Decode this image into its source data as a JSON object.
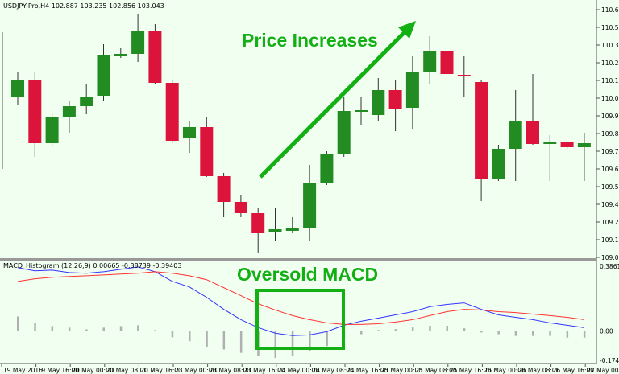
{
  "header": {
    "symbol_info": "USDJPY-Pro,H4  102.887 103.235 102.856 103.043"
  },
  "indicator": {
    "label": "MACD_Histogram (12,26,9) 0.00665 -0.38739 -0.39403"
  },
  "annotations": {
    "price_text": "Price Increases",
    "macd_text": "Oversold MACD",
    "color": "#12b012"
  },
  "colors": {
    "bull": "#228b22",
    "bear": "#dc143c",
    "macd": "#3333ff",
    "signal": "#ff3333",
    "hist": "#b0b0b0",
    "background": "#f0fff0"
  },
  "chart_data": [
    {
      "type": "candlestick",
      "ylim": [
        109.07,
        110.61
      ],
      "y_ticks": [
        "110.610",
        "110.500",
        "110.390",
        "110.280",
        "110.170",
        "110.060",
        "109.950",
        "109.840",
        "109.730",
        "109.620",
        "109.510",
        "109.400",
        "109.290",
        "109.180",
        "109.070"
      ],
      "ohlc": [
        [
          110.065,
          110.22,
          110.02,
          110.175
        ],
        [
          110.175,
          110.22,
          109.695,
          109.78
        ],
        [
          109.78,
          109.97,
          109.76,
          109.945
        ],
        [
          109.945,
          110.045,
          109.845,
          110.01
        ],
        [
          110.01,
          110.15,
          109.96,
          110.07
        ],
        [
          110.075,
          110.395,
          110.045,
          110.325
        ],
        [
          110.32,
          110.37,
          110.31,
          110.335
        ],
        [
          110.335,
          110.585,
          110.285,
          110.48
        ],
        [
          110.48,
          110.52,
          110.145,
          110.155
        ],
        [
          110.155,
          110.17,
          109.78,
          109.795
        ],
        [
          109.81,
          109.92,
          109.72,
          109.88
        ],
        [
          109.88,
          109.945,
          109.57,
          109.575
        ],
        [
          109.575,
          109.595,
          109.32,
          109.415
        ],
        [
          109.415,
          109.455,
          109.32,
          109.345
        ],
        [
          109.345,
          109.38,
          109.095,
          109.22
        ],
        [
          109.23,
          109.38,
          109.17,
          109.245
        ],
        [
          109.235,
          109.32,
          109.22,
          109.255
        ],
        [
          109.255,
          109.645,
          109.17,
          109.535
        ],
        [
          109.535,
          109.73,
          109.52,
          109.715
        ],
        [
          109.715,
          110.07,
          109.695,
          109.98
        ],
        [
          109.98,
          110.07,
          109.895,
          109.985
        ],
        [
          109.955,
          110.185,
          109.92,
          110.11
        ],
        [
          110.11,
          110.17,
          109.855,
          109.995
        ],
        [
          110.0,
          110.32,
          109.87,
          110.225
        ],
        [
          110.225,
          110.445,
          110.145,
          110.355
        ],
        [
          110.355,
          110.455,
          110.07,
          110.21
        ],
        [
          110.205,
          110.32,
          110.07,
          110.195
        ],
        [
          110.16,
          110.17,
          109.42,
          109.555
        ],
        [
          109.555,
          109.77,
          109.545,
          109.745
        ],
        [
          109.745,
          110.11,
          109.545,
          109.915
        ],
        [
          109.915,
          110.21,
          109.77,
          109.775
        ],
        [
          109.775,
          109.83,
          109.545,
          109.79
        ],
        [
          109.79,
          109.79,
          109.745,
          109.755
        ],
        [
          109.755,
          109.845,
          109.545,
          109.78
        ]
      ]
    },
    {
      "type": "line",
      "ylim": [
        -0.17411,
        0.38615
      ],
      "y_ticks": [
        "0.38615",
        "0.00",
        "-0.17411"
      ],
      "x_ticks": [
        "19 May 2016",
        "19 May 16:00",
        "20 May 00:00",
        "20 May 08:00",
        "20 May 16:00",
        "23 May 00:00",
        "23 May 08:00",
        "23 May 16:00",
        "24 May 00:00",
        "24 May 08:00",
        "24 May 16:00",
        "25 May 00:00",
        "25 May 08:00",
        "25 May 16:00",
        "26 May 00:00",
        "26 May 08:00",
        "26 May 16:00",
        "27 May 00:00"
      ],
      "histogram": [
        0.085,
        0.047,
        0.028,
        0.019,
        0.009,
        0.019,
        0.028,
        0.033,
        0.005,
        -0.038,
        -0.061,
        -0.094,
        -0.11,
        -0.13,
        -0.15,
        -0.16,
        -0.15,
        -0.12,
        -0.09,
        -0.04,
        -0.02,
        0.005,
        0.01,
        0.02,
        0.03,
        0.03,
        0.015,
        -0.01,
        -0.02,
        -0.03,
        -0.03,
        -0.03,
        -0.04,
        -0.04
      ],
      "series": [
        {
          "values": [
            0.373,
            0.354,
            0.358,
            0.344,
            0.34,
            0.349,
            0.363,
            0.377,
            0.349,
            0.292,
            0.259,
            0.198,
            0.127,
            0.066,
            0.019,
            -0.014,
            -0.028,
            -0.024,
            -0.005,
            0.033,
            0.057,
            0.075,
            0.094,
            0.113,
            0.142,
            0.156,
            0.165,
            0.127,
            0.094,
            0.08,
            0.066,
            0.047,
            0.033,
            0.019
          ]
        },
        {
          "values": [
            0.292,
            0.307,
            0.316,
            0.321,
            0.325,
            0.33,
            0.335,
            0.34,
            0.349,
            0.34,
            0.325,
            0.302,
            0.255,
            0.208,
            0.16,
            0.123,
            0.09,
            0.066,
            0.047,
            0.038,
            0.038,
            0.042,
            0.052,
            0.066,
            0.09,
            0.113,
            0.127,
            0.123,
            0.113,
            0.108,
            0.099,
            0.09,
            0.08,
            0.066
          ]
        }
      ]
    }
  ]
}
